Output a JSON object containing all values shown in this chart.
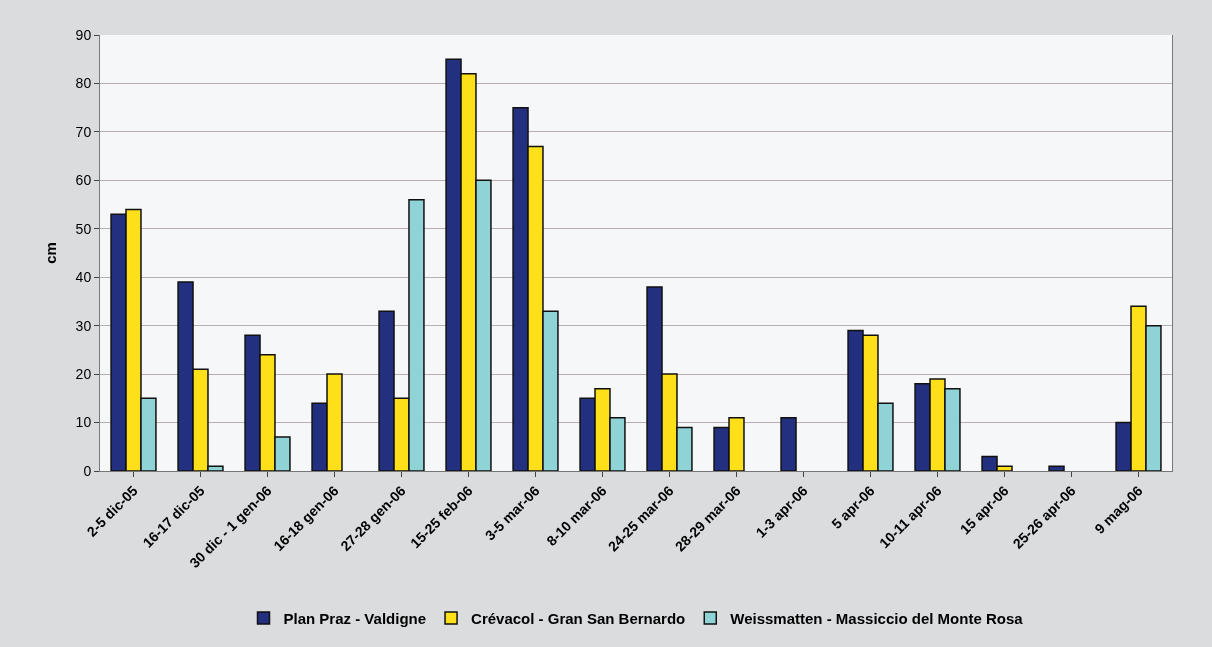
{
  "chart_data": {
    "type": "bar",
    "ylabel": "cm",
    "categories": [
      "2-5 dic-05",
      "16-17 dic-05",
      "30 dic - 1 gen-06",
      "16-18 gen-06",
      "27-28 gen-06",
      "15-25 feb-06",
      "3-5 mar-06",
      "8-10 mar-06",
      "24-25 mar-06",
      "28-29 mar-06",
      "1-3 apr-06",
      "5 apr-06",
      "10-11 apr-06",
      "15 apr-06",
      "25-26 apr-06",
      "9 mag-06"
    ],
    "series": [
      {
        "name": "Plan Praz - Valdigne",
        "color": "#232f7f",
        "values": [
          53,
          39,
          28,
          14,
          33,
          85,
          75,
          15,
          38,
          9,
          11,
          29,
          18,
          3,
          1,
          10
        ]
      },
      {
        "name": "Crévacol - Gran San Bernardo",
        "color": "#fde01a",
        "values": [
          54,
          21,
          24,
          20,
          15,
          82,
          67,
          17,
          20,
          11,
          null,
          28,
          19,
          1,
          null,
          34
        ]
      },
      {
        "name": "Weissmatten - Massiccio del Monte Rosa",
        "color": "#8fd3d6",
        "values": [
          15,
          1,
          7,
          null,
          56,
          60,
          33,
          11,
          9,
          null,
          null,
          14,
          17,
          null,
          null,
          30
        ]
      }
    ],
    "ylim": [
      0,
      90
    ],
    "yticks": [
      0,
      10,
      20,
      30,
      40,
      50,
      60,
      70,
      80,
      90
    ],
    "grid": "y",
    "legend": "bottom"
  }
}
